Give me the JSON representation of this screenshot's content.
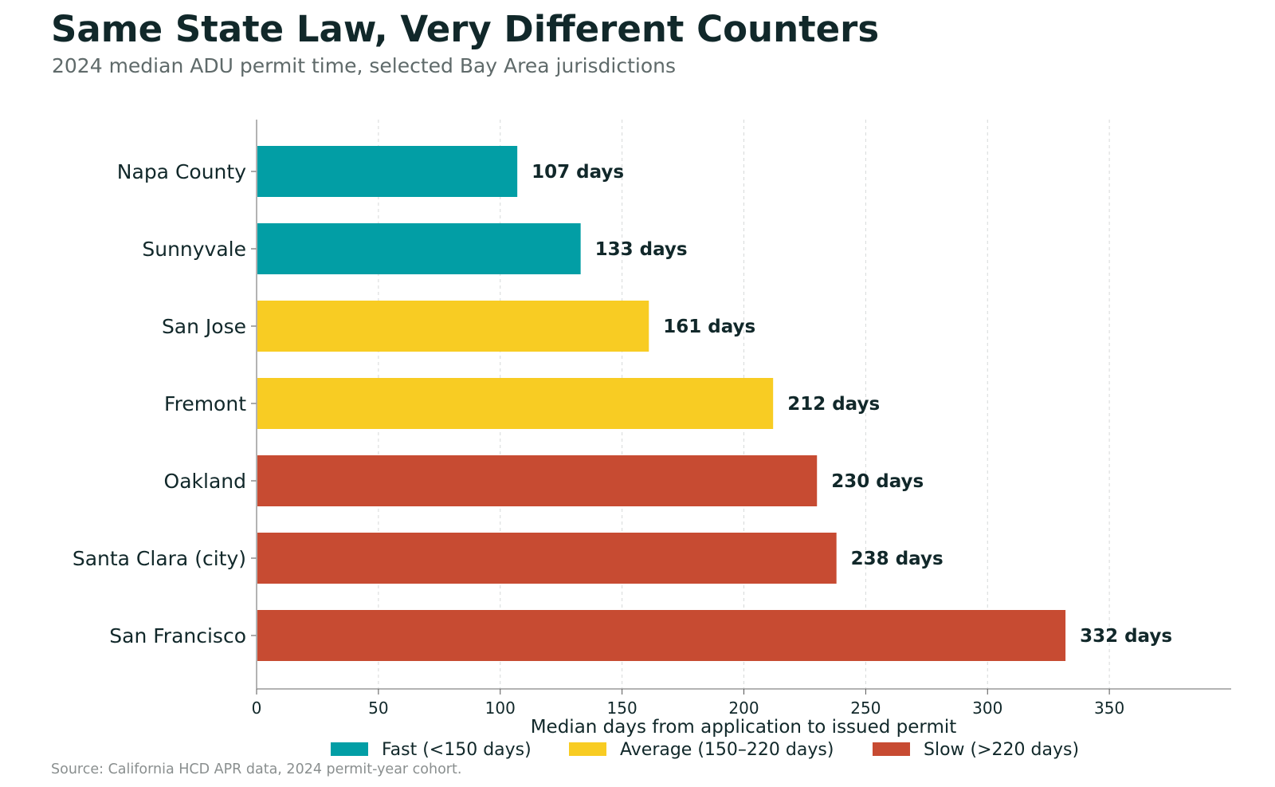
{
  "chart_data": {
    "type": "bar",
    "orientation": "horizontal",
    "title": "Same State Law, Very Different Counters",
    "subtitle": "2024 median ADU permit time, selected Bay Area jurisdictions",
    "xlabel": "Median days from application to issued permit",
    "ylabel": "",
    "categories": [
      "Napa County",
      "Sunnyvale",
      "San Jose",
      "Fremont",
      "Oakland",
      "Santa Clara (city)",
      "San Francisco"
    ],
    "values": [
      107,
      133,
      161,
      212,
      230,
      238,
      332
    ],
    "value_labels": [
      "107 days",
      "133 days",
      "161 days",
      "212 days",
      "230 days",
      "238 days",
      "332 days"
    ],
    "bar_groups": [
      "fast",
      "fast",
      "average",
      "average",
      "slow",
      "slow",
      "slow"
    ],
    "xlim": [
      0,
      400
    ],
    "xticks": [
      0,
      50,
      100,
      150,
      200,
      250,
      300,
      350
    ],
    "grid": "x-dashed",
    "legend": {
      "placement": "bottom-center",
      "entries": [
        {
          "key": "fast",
          "label": "Fast (<150 days)",
          "color": "#029ea5"
        },
        {
          "key": "average",
          "label": "Average (150–220 days)",
          "color": "#f8cc23"
        },
        {
          "key": "slow",
          "label": "Slow (>220 days)",
          "color": "#c74b32"
        }
      ]
    },
    "source": "Source: California HCD APR data, 2024 permit-year cohort."
  }
}
